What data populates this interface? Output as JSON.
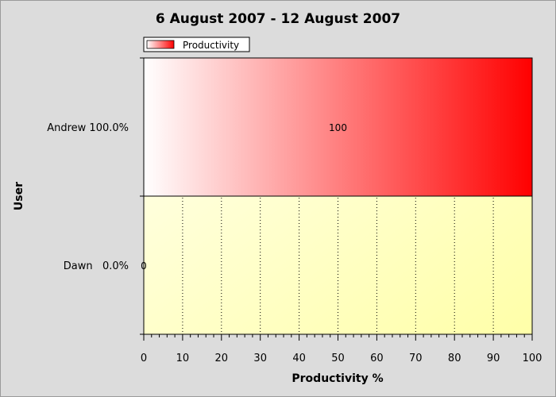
{
  "chart_data": {
    "type": "bar",
    "orientation": "horizontal",
    "title": "6 August 2007 - 12 August 2007",
    "xlabel": "Productivity %",
    "ylabel": "User",
    "xlim": [
      0,
      100
    ],
    "x_ticks": [
      0,
      10,
      20,
      30,
      40,
      50,
      60,
      70,
      80,
      90,
      100
    ],
    "categories": [
      "Andrew 100.0%",
      "Dawn   0.0%"
    ],
    "series": [
      {
        "name": "Productivity",
        "values": [
          100,
          0
        ],
        "data_labels": [
          "100",
          "0"
        ]
      }
    ],
    "legend": "top-left",
    "grid": "vertical dotted",
    "colors": {
      "bar_start": "#ffffff",
      "bar_end": "#ff0000",
      "plot_bg_start": "#ffffee",
      "plot_bg_end": "#ffffa8",
      "frame_bg": "#dcdcdc"
    }
  }
}
